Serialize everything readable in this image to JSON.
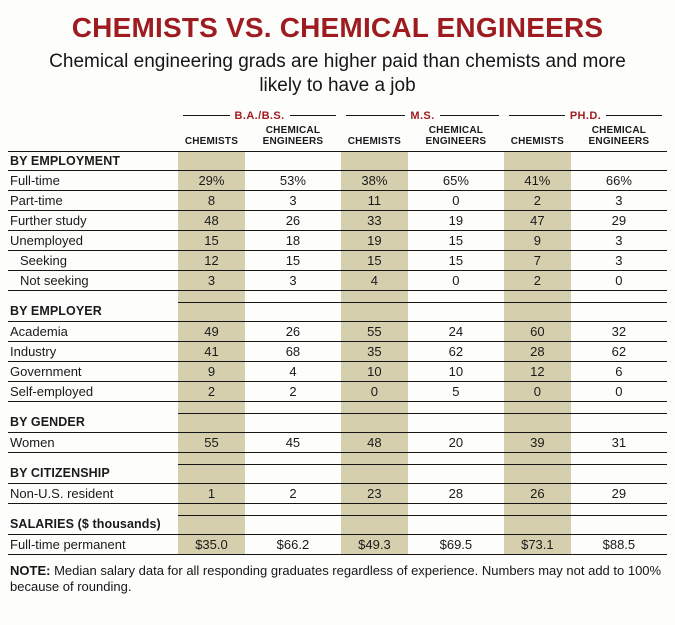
{
  "chart_data": {
    "type": "table",
    "title": "CHEMISTS VS. CHEMICAL ENGINEERS",
    "subtitle": "Chemical engineering grads are higher paid than chemists and more likely to have a job",
    "degree_groups": [
      "B.A./B.S.",
      "M.S.",
      "PH.D."
    ],
    "column_headers": [
      "CHEMISTS",
      "CHEMICAL ENGINEERS"
    ],
    "sections": [
      {
        "label": "BY EMPLOYMENT",
        "rows": [
          {
            "label": "Full-time",
            "indent": false,
            "values": [
              "29%",
              "53%",
              "38%",
              "65%",
              "41%",
              "66%"
            ]
          },
          {
            "label": "Part-time",
            "indent": false,
            "values": [
              "8",
              "3",
              "11",
              "0",
              "2",
              "3"
            ]
          },
          {
            "label": "Further study",
            "indent": false,
            "values": [
              "48",
              "26",
              "33",
              "19",
              "47",
              "29"
            ]
          },
          {
            "label": "Unemployed",
            "indent": false,
            "values": [
              "15",
              "18",
              "19",
              "15",
              "9",
              "3"
            ]
          },
          {
            "label": "Seeking",
            "indent": true,
            "values": [
              "12",
              "15",
              "15",
              "15",
              "7",
              "3"
            ]
          },
          {
            "label": "Not seeking",
            "indent": true,
            "values": [
              "3",
              "3",
              "4",
              "0",
              "2",
              "0"
            ]
          }
        ]
      },
      {
        "label": "BY EMPLOYER",
        "rows": [
          {
            "label": "Academia",
            "indent": false,
            "values": [
              "49",
              "26",
              "55",
              "24",
              "60",
              "32"
            ]
          },
          {
            "label": "Industry",
            "indent": false,
            "values": [
              "41",
              "68",
              "35",
              "62",
              "28",
              "62"
            ]
          },
          {
            "label": "Government",
            "indent": false,
            "values": [
              "9",
              "4",
              "10",
              "10",
              "12",
              "6"
            ]
          },
          {
            "label": "Self-employed",
            "indent": false,
            "values": [
              "2",
              "2",
              "0",
              "5",
              "0",
              "0"
            ]
          }
        ]
      },
      {
        "label": "BY GENDER",
        "rows": [
          {
            "label": "Women",
            "indent": false,
            "values": [
              "55",
              "45",
              "48",
              "20",
              "39",
              "31"
            ]
          }
        ]
      },
      {
        "label": "BY CITIZENSHIP",
        "rows": [
          {
            "label": "Non-U.S. resident",
            "indent": false,
            "values": [
              "1",
              "2",
              "23",
              "28",
              "26",
              "29"
            ]
          }
        ]
      },
      {
        "label": "SALARIES ($ thousands)",
        "rows": [
          {
            "label": "Full-time permanent",
            "indent": false,
            "values": [
              "$35.0",
              "$66.2",
              "$49.3",
              "$69.5",
              "$73.1",
              "$88.5"
            ]
          }
        ]
      }
    ],
    "note_label": "NOTE:",
    "note_text": "Median salary data for all responding graduates regardless of experience. Numbers may not add to 100% because of rounding."
  },
  "colors": {
    "maroon": "#9e1b1f",
    "beige": "#d6cfae",
    "rule": "#161616"
  }
}
